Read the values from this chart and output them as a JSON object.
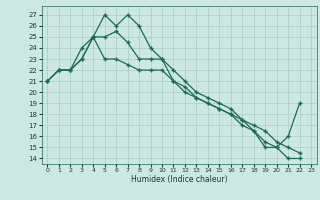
{
  "xlabel": "Humidex (Indice chaleur)",
  "bg_color": "#cce8e0",
  "grid_color": "#aacccc",
  "line_color": "#1a6b5a",
  "xlim": [
    -0.5,
    23.5
  ],
  "ylim": [
    13.5,
    27.8
  ],
  "xticks": [
    0,
    1,
    2,
    3,
    4,
    5,
    6,
    7,
    8,
    9,
    10,
    11,
    12,
    13,
    14,
    15,
    16,
    17,
    18,
    19,
    20,
    21,
    22,
    23
  ],
  "yticks": [
    14,
    15,
    16,
    17,
    18,
    19,
    20,
    21,
    22,
    23,
    24,
    25,
    26,
    27
  ],
  "series1": {
    "x": [
      0,
      1,
      2,
      3,
      4,
      5,
      6,
      7,
      8,
      9,
      10,
      11,
      12,
      13,
      14,
      15,
      16,
      17,
      18,
      19,
      20,
      21,
      22
    ],
    "y": [
      21,
      22,
      22,
      24,
      25,
      27,
      26,
      27,
      26,
      24,
      23,
      21,
      20.5,
      19.5,
      19,
      18.5,
      18,
      17.5,
      16.5,
      15,
      15,
      16,
      19
    ]
  },
  "series2": {
    "x": [
      0,
      1,
      2,
      3,
      4,
      5,
      6,
      7,
      8,
      9,
      10,
      11,
      12,
      13,
      14,
      15,
      16,
      17,
      18,
      19,
      20,
      21,
      22
    ],
    "y": [
      21,
      22,
      22,
      23,
      25,
      25,
      25.5,
      24.5,
      23,
      23,
      23,
      22,
      21,
      20,
      19.5,
      19,
      18.5,
      17.5,
      17,
      16.5,
      15.5,
      15,
      14.5
    ]
  },
  "series3": {
    "x": [
      0,
      1,
      2,
      3,
      4,
      5,
      6,
      7,
      8,
      9,
      10,
      11,
      12,
      13,
      14,
      15,
      16,
      17,
      18,
      19,
      20,
      21,
      22
    ],
    "y": [
      21,
      22,
      22,
      23,
      25,
      23,
      23,
      22.5,
      22,
      22,
      22,
      21,
      20,
      19.5,
      19,
      18.5,
      18,
      17,
      16.5,
      15.5,
      15,
      14,
      14
    ]
  }
}
